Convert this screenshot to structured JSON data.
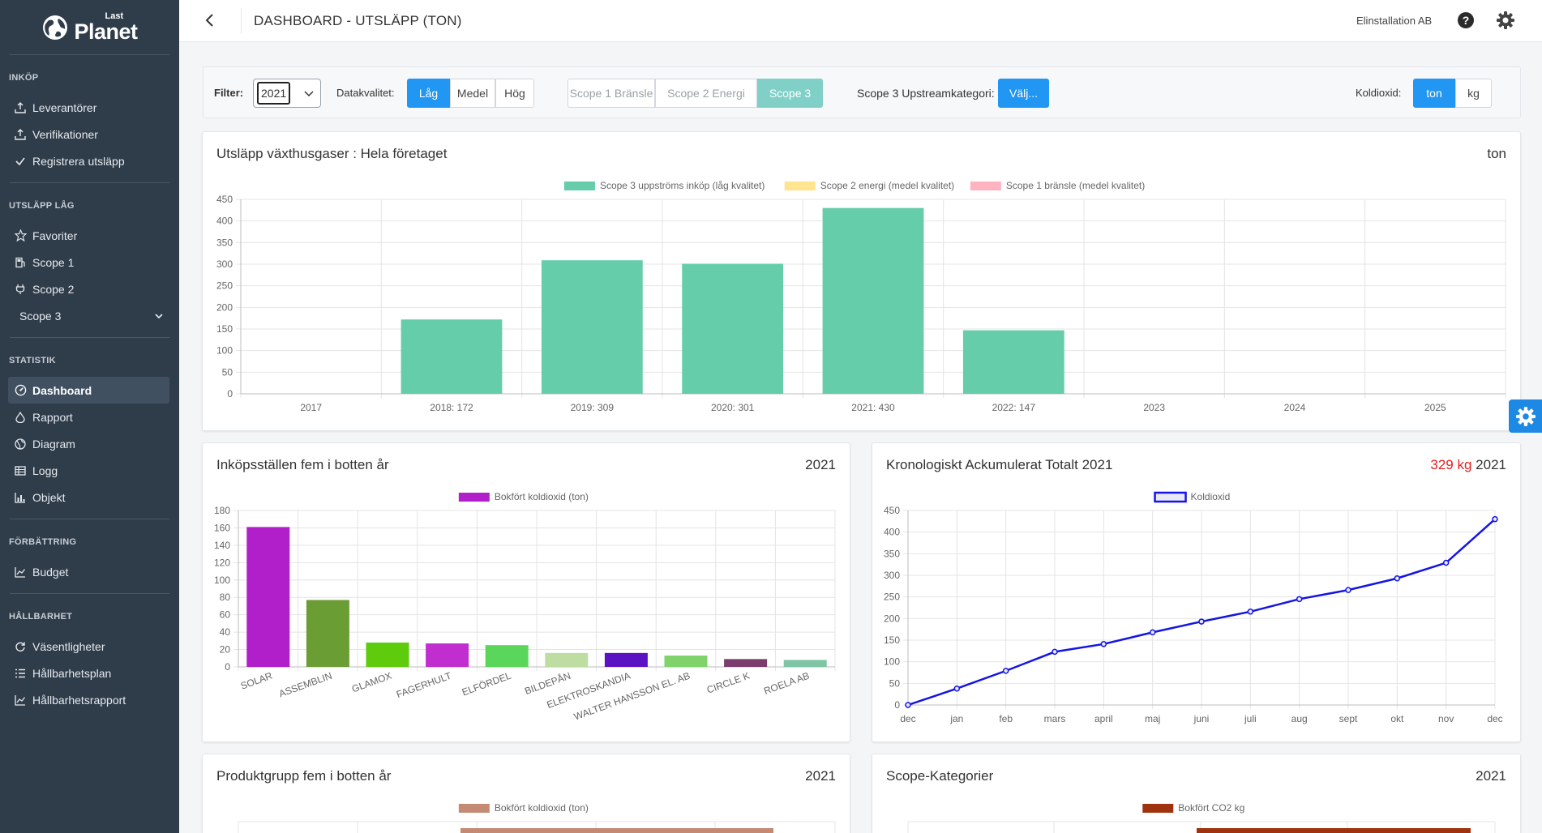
{
  "app": {
    "logo_small": "Last",
    "logo_big": "Planet",
    "page_title": "DASHBOARD - UTSLÄPP (TON)",
    "company": "Elinstallation AB"
  },
  "sidebar": {
    "sections": [
      {
        "title": "INKÖP",
        "items": [
          "Leverantörer",
          "Verifikationer",
          "Registrera utsläpp"
        ]
      },
      {
        "title": "UTSLÄPP LÅG",
        "items": [
          "Favoriter",
          "Scope 1",
          "Scope 2",
          "Scope 3"
        ]
      },
      {
        "title": "STATISTIK",
        "items": [
          "Dashboard",
          "Rapport",
          "Diagram",
          "Logg",
          "Objekt"
        ]
      },
      {
        "title": "FÖRBÄTTRING",
        "items": [
          "Budget"
        ]
      },
      {
        "title": "HÅLLBARHET",
        "items": [
          "Väsentligheter",
          "Hållbarhetsplan",
          "Hållbarhetsrapport"
        ]
      }
    ]
  },
  "filters": {
    "filter_label": "Filter:",
    "year": "2021",
    "quality_label": "Datakvalitet:",
    "quality_options": [
      "Låg",
      "Medel",
      "Hög"
    ],
    "scope_options": [
      "Scope 1 Bränsle",
      "Scope 2 Energi",
      "Scope 3"
    ],
    "upstream_label": "Scope 3 Upstreamkategori:",
    "upstream_button": "Välj...",
    "co2_label": "Koldioxid:",
    "unit_options": [
      "ton",
      "kg"
    ]
  },
  "cards": {
    "main": {
      "title": "Utsläpp växthusgaser : Hela företaget",
      "right": "ton"
    },
    "bottom5": {
      "title": "Inköpsställen fem i botten år",
      "right": "2021"
    },
    "cumulative": {
      "title": "Kronologiskt Ackumulerat Totalt 2021",
      "right_red": "329 kg",
      "right": "2021"
    },
    "productgroup": {
      "title": "Produktgrupp fem i botten år",
      "right": "2021"
    },
    "scopecat": {
      "title": "Scope-Kategorier",
      "right": "2021"
    }
  },
  "chart_data": [
    {
      "type": "bar",
      "legend": [
        {
          "name": "Scope 3 uppströms inköp (låg kvalitet)",
          "color": "#66cdaa"
        },
        {
          "name": "Scope 2 energi (medel kvalitet)",
          "color": "#ffe58f"
        },
        {
          "name": "Scope 1 bränsle (medel kvalitet)",
          "color": "#ffb3c1"
        }
      ],
      "categories": [
        "2017",
        "2018: 172",
        "2019: 309",
        "2020: 301",
        "2021: 430",
        "2022: 147",
        "2023",
        "2024",
        "2025"
      ],
      "series": [
        {
          "name": "Scope 3 uppströms inköp (låg kvalitet)",
          "values": [
            0,
            172,
            309,
            301,
            430,
            147,
            0,
            0,
            0
          ]
        }
      ],
      "ylim": [
        0,
        450
      ],
      "yticks": [
        0,
        50,
        100,
        150,
        200,
        250,
        300,
        350,
        400,
        450
      ],
      "grid": true,
      "legend_position": "top"
    },
    {
      "type": "bar",
      "legend": [
        {
          "name": "Bokfört koldioxid (ton)",
          "color": "#b01fc9"
        }
      ],
      "categories": [
        "SOLAR",
        "ASSEMBLIN",
        "GLAMOX",
        "FAGERHULT",
        "ELFÖRDEL",
        "BILDEPÅN",
        "ELEKTROSKANDIA",
        "WALTER HANSSON EL. AB",
        "CIRCLE K",
        "ROELA AB"
      ],
      "values": [
        161,
        77,
        28,
        27,
        25,
        16,
        16,
        13,
        9,
        8
      ],
      "colors": [
        "#b01fc9",
        "#6b9d35",
        "#5ecb0c",
        "#c02ed0",
        "#5ad65a",
        "#bedda2",
        "#5a12c2",
        "#7fd36a",
        "#7a3d6e",
        "#7fc4a4"
      ],
      "ylim": [
        0,
        180
      ],
      "yticks": [
        0,
        20,
        40,
        60,
        80,
        100,
        120,
        140,
        160,
        180
      ],
      "grid": true,
      "legend_position": "top"
    },
    {
      "type": "line",
      "legend": [
        {
          "name": "Koldioxid",
          "color": "#1414e6"
        }
      ],
      "x": [
        "dec",
        "jan",
        "feb",
        "mars",
        "april",
        "maj",
        "juni",
        "juli",
        "aug",
        "sept",
        "okt",
        "nov",
        "dec"
      ],
      "series": [
        {
          "name": "Koldioxid",
          "values": [
            0,
            38,
            79,
            123,
            141,
            168,
            193,
            216,
            245,
            266,
            293,
            329,
            430
          ]
        }
      ],
      "ylim": [
        0,
        450
      ],
      "yticks": [
        0,
        50,
        100,
        150,
        200,
        250,
        300,
        350,
        400,
        450
      ],
      "grid": true,
      "legend_position": "top"
    },
    {
      "type": "bar",
      "legend": [
        {
          "name": "Bokfört koldioxid (ton)",
          "color": "#c48a74"
        }
      ],
      "legend_position": "top"
    },
    {
      "type": "bar",
      "legend": [
        {
          "name": "Bokfört CO2 kg",
          "color": "#a0330f"
        }
      ],
      "legend_position": "top"
    }
  ],
  "colors": {
    "sidebar": "#2f3c4a",
    "accent": "#2196f3",
    "scope3_active": "#80d0c8",
    "red_value": "#e32020"
  }
}
